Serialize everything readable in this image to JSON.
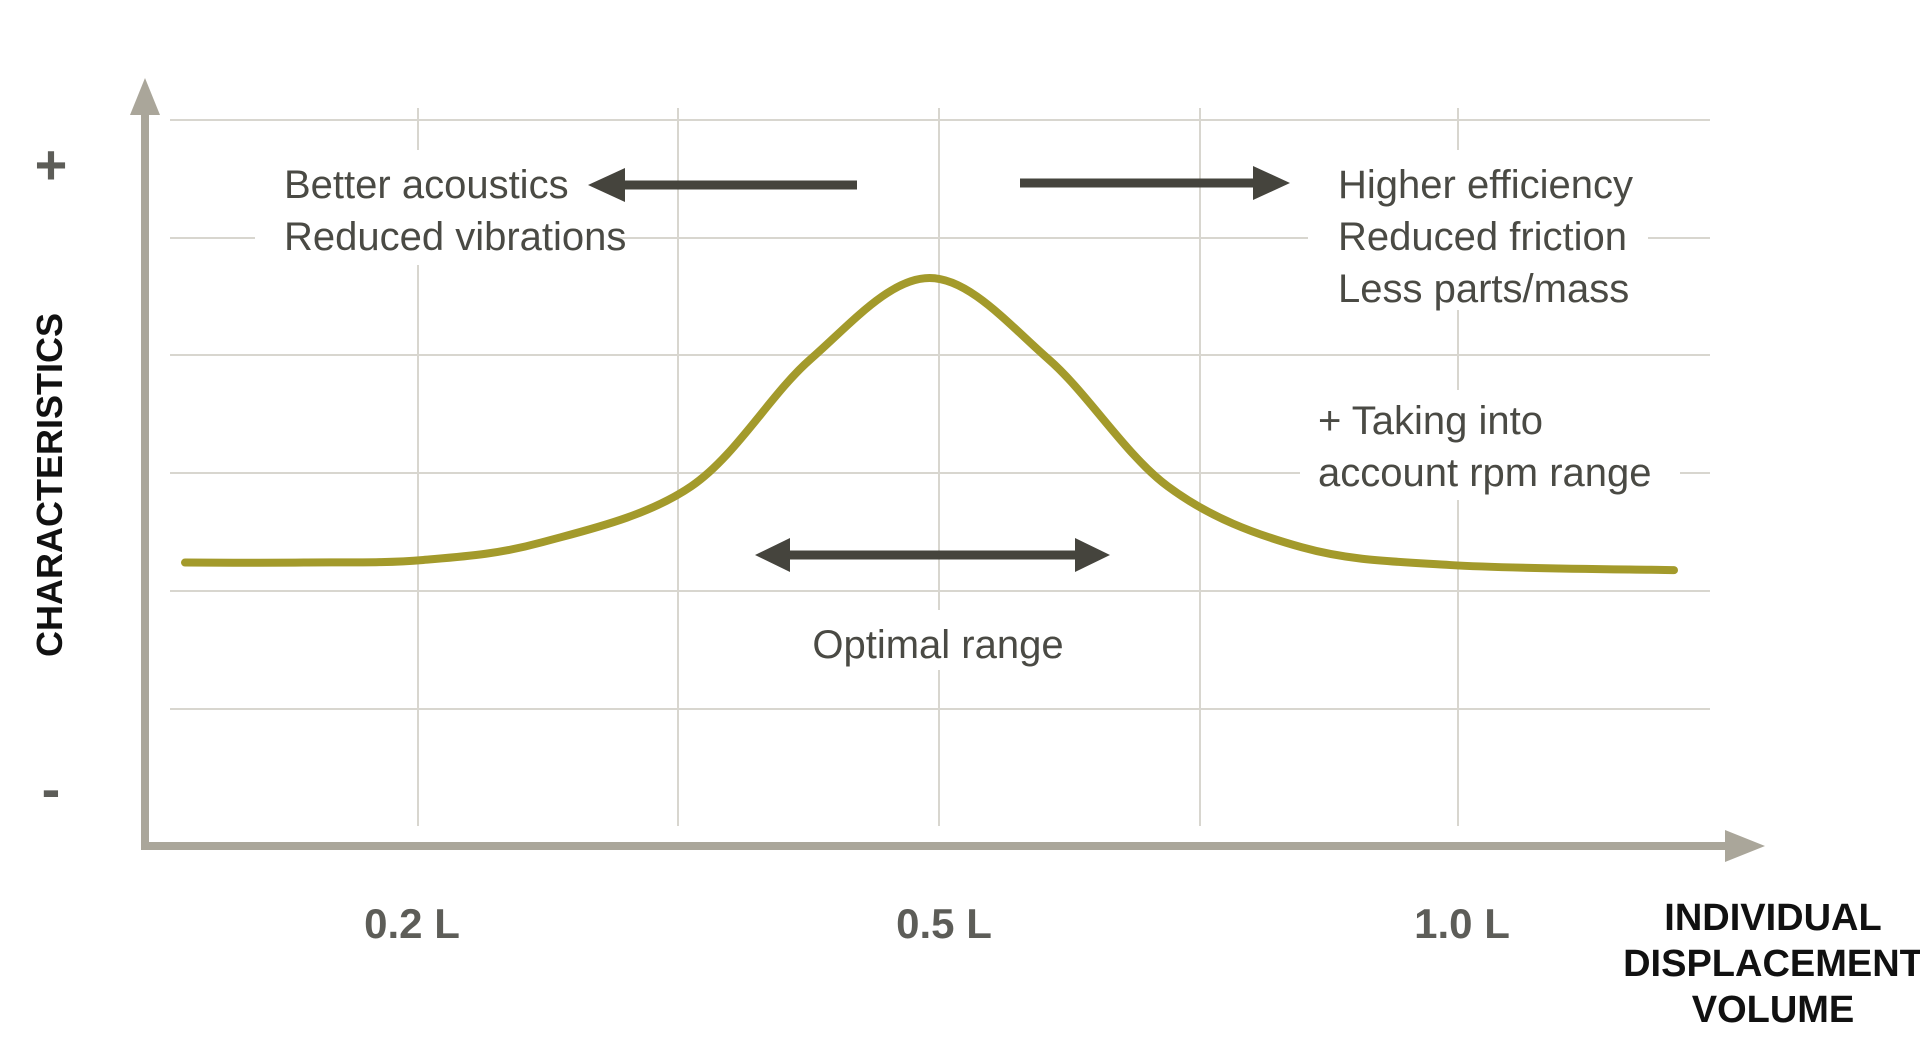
{
  "chart_data": {
    "type": "line",
    "title": "",
    "xlabel": "INDIVIDUAL DISPLACEMENT VOLUME",
    "xlabel_lines": [
      "INDIVIDUAL",
      "DISPLACEMENT",
      "VOLUME"
    ],
    "ylabel": "CHARACTERISTICS",
    "y_tick_labels": {
      "top": "+",
      "bottom": "-"
    },
    "x_ticks": [
      {
        "value": 0.2,
        "label": "0.2 L"
      },
      {
        "value": 0.5,
        "label": "0.5 L"
      },
      {
        "value": 1.0,
        "label": "1.0 L"
      }
    ],
    "grid": true,
    "curve": {
      "color": "#a39a2b",
      "points": [
        [
          0,
          0.31
        ],
        [
          0.08,
          0.31
        ],
        [
          0.16,
          0.315
        ],
        [
          0.24,
          0.35
        ],
        [
          0.34,
          0.46
        ],
        [
          0.42,
          0.71
        ],
        [
          0.5,
          0.87
        ],
        [
          0.58,
          0.71
        ],
        [
          0.66,
          0.46
        ],
        [
          0.75,
          0.34
        ],
        [
          0.85,
          0.305
        ],
        [
          1.0,
          0.295
        ]
      ]
    },
    "annotations": {
      "left": [
        "Better acoustics",
        "Reduced vibrations"
      ],
      "right": [
        "Higher efficiency",
        "Reduced friction",
        "Less parts/mass"
      ],
      "rpm": [
        "+ Taking into",
        "account rpm range"
      ],
      "optimal": "Optimal range"
    },
    "colors": {
      "axis": "#aaa69a",
      "grid": "#d8d6cf",
      "arrow": "#45443d",
      "text": "#4a4a44"
    }
  }
}
